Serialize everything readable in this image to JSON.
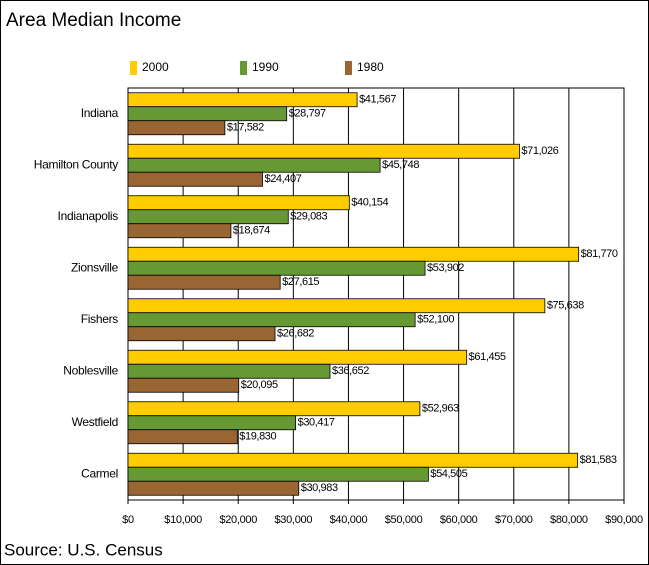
{
  "chart_data": {
    "type": "hbar",
    "title": "Area Median Income",
    "source": "Source: U.S. Census",
    "categories": [
      "Indiana",
      "Hamilton County",
      "Indianapolis",
      "Zionsville",
      "Fishers",
      "Noblesville",
      "Westfield",
      "Carmel"
    ],
    "series": [
      {
        "name": "2000",
        "color": "#ffcc00",
        "values": [
          41567,
          71026,
          40154,
          81770,
          75638,
          61455,
          52963,
          81583
        ],
        "value_labels": [
          "$41,567",
          "$71,026",
          "$40,154",
          "$81,770",
          "$75,638",
          "$61,455",
          "$52,963",
          "$81,583"
        ]
      },
      {
        "name": "1990",
        "color": "#669933",
        "values": [
          28797,
          45748,
          29083,
          53902,
          52100,
          36652,
          30417,
          54505
        ],
        "value_labels": [
          "$28,797",
          "$45,748",
          "$29,083",
          "$53,902",
          "$52,100",
          "$36,652",
          "$30,417",
          "$54,505"
        ]
      },
      {
        "name": "1980",
        "color": "#996633",
        "values": [
          17582,
          24407,
          18674,
          27615,
          26682,
          20095,
          19830,
          30983
        ],
        "value_labels": [
          "$17,582",
          "$24,407",
          "$18,674",
          "$27,615",
          "$26,682",
          "$20,095",
          "$19,830",
          "$30,983"
        ]
      }
    ],
    "xlim": [
      0,
      90000
    ],
    "xticks": [
      {
        "value": 0,
        "label": "$0"
      },
      {
        "value": 10000,
        "label": "$10,000"
      },
      {
        "value": 20000,
        "label": "$20,000"
      },
      {
        "value": 30000,
        "label": "$30,000"
      },
      {
        "value": 40000,
        "label": "$40,000"
      },
      {
        "value": 50000,
        "label": "$50,000"
      },
      {
        "value": 60000,
        "label": "$60,000"
      },
      {
        "value": 70000,
        "label": "$70,000"
      },
      {
        "value": 80000,
        "label": "$80,000"
      },
      {
        "value": 90000,
        "label": "$90,000"
      }
    ],
    "grid": true,
    "legend": "top"
  }
}
